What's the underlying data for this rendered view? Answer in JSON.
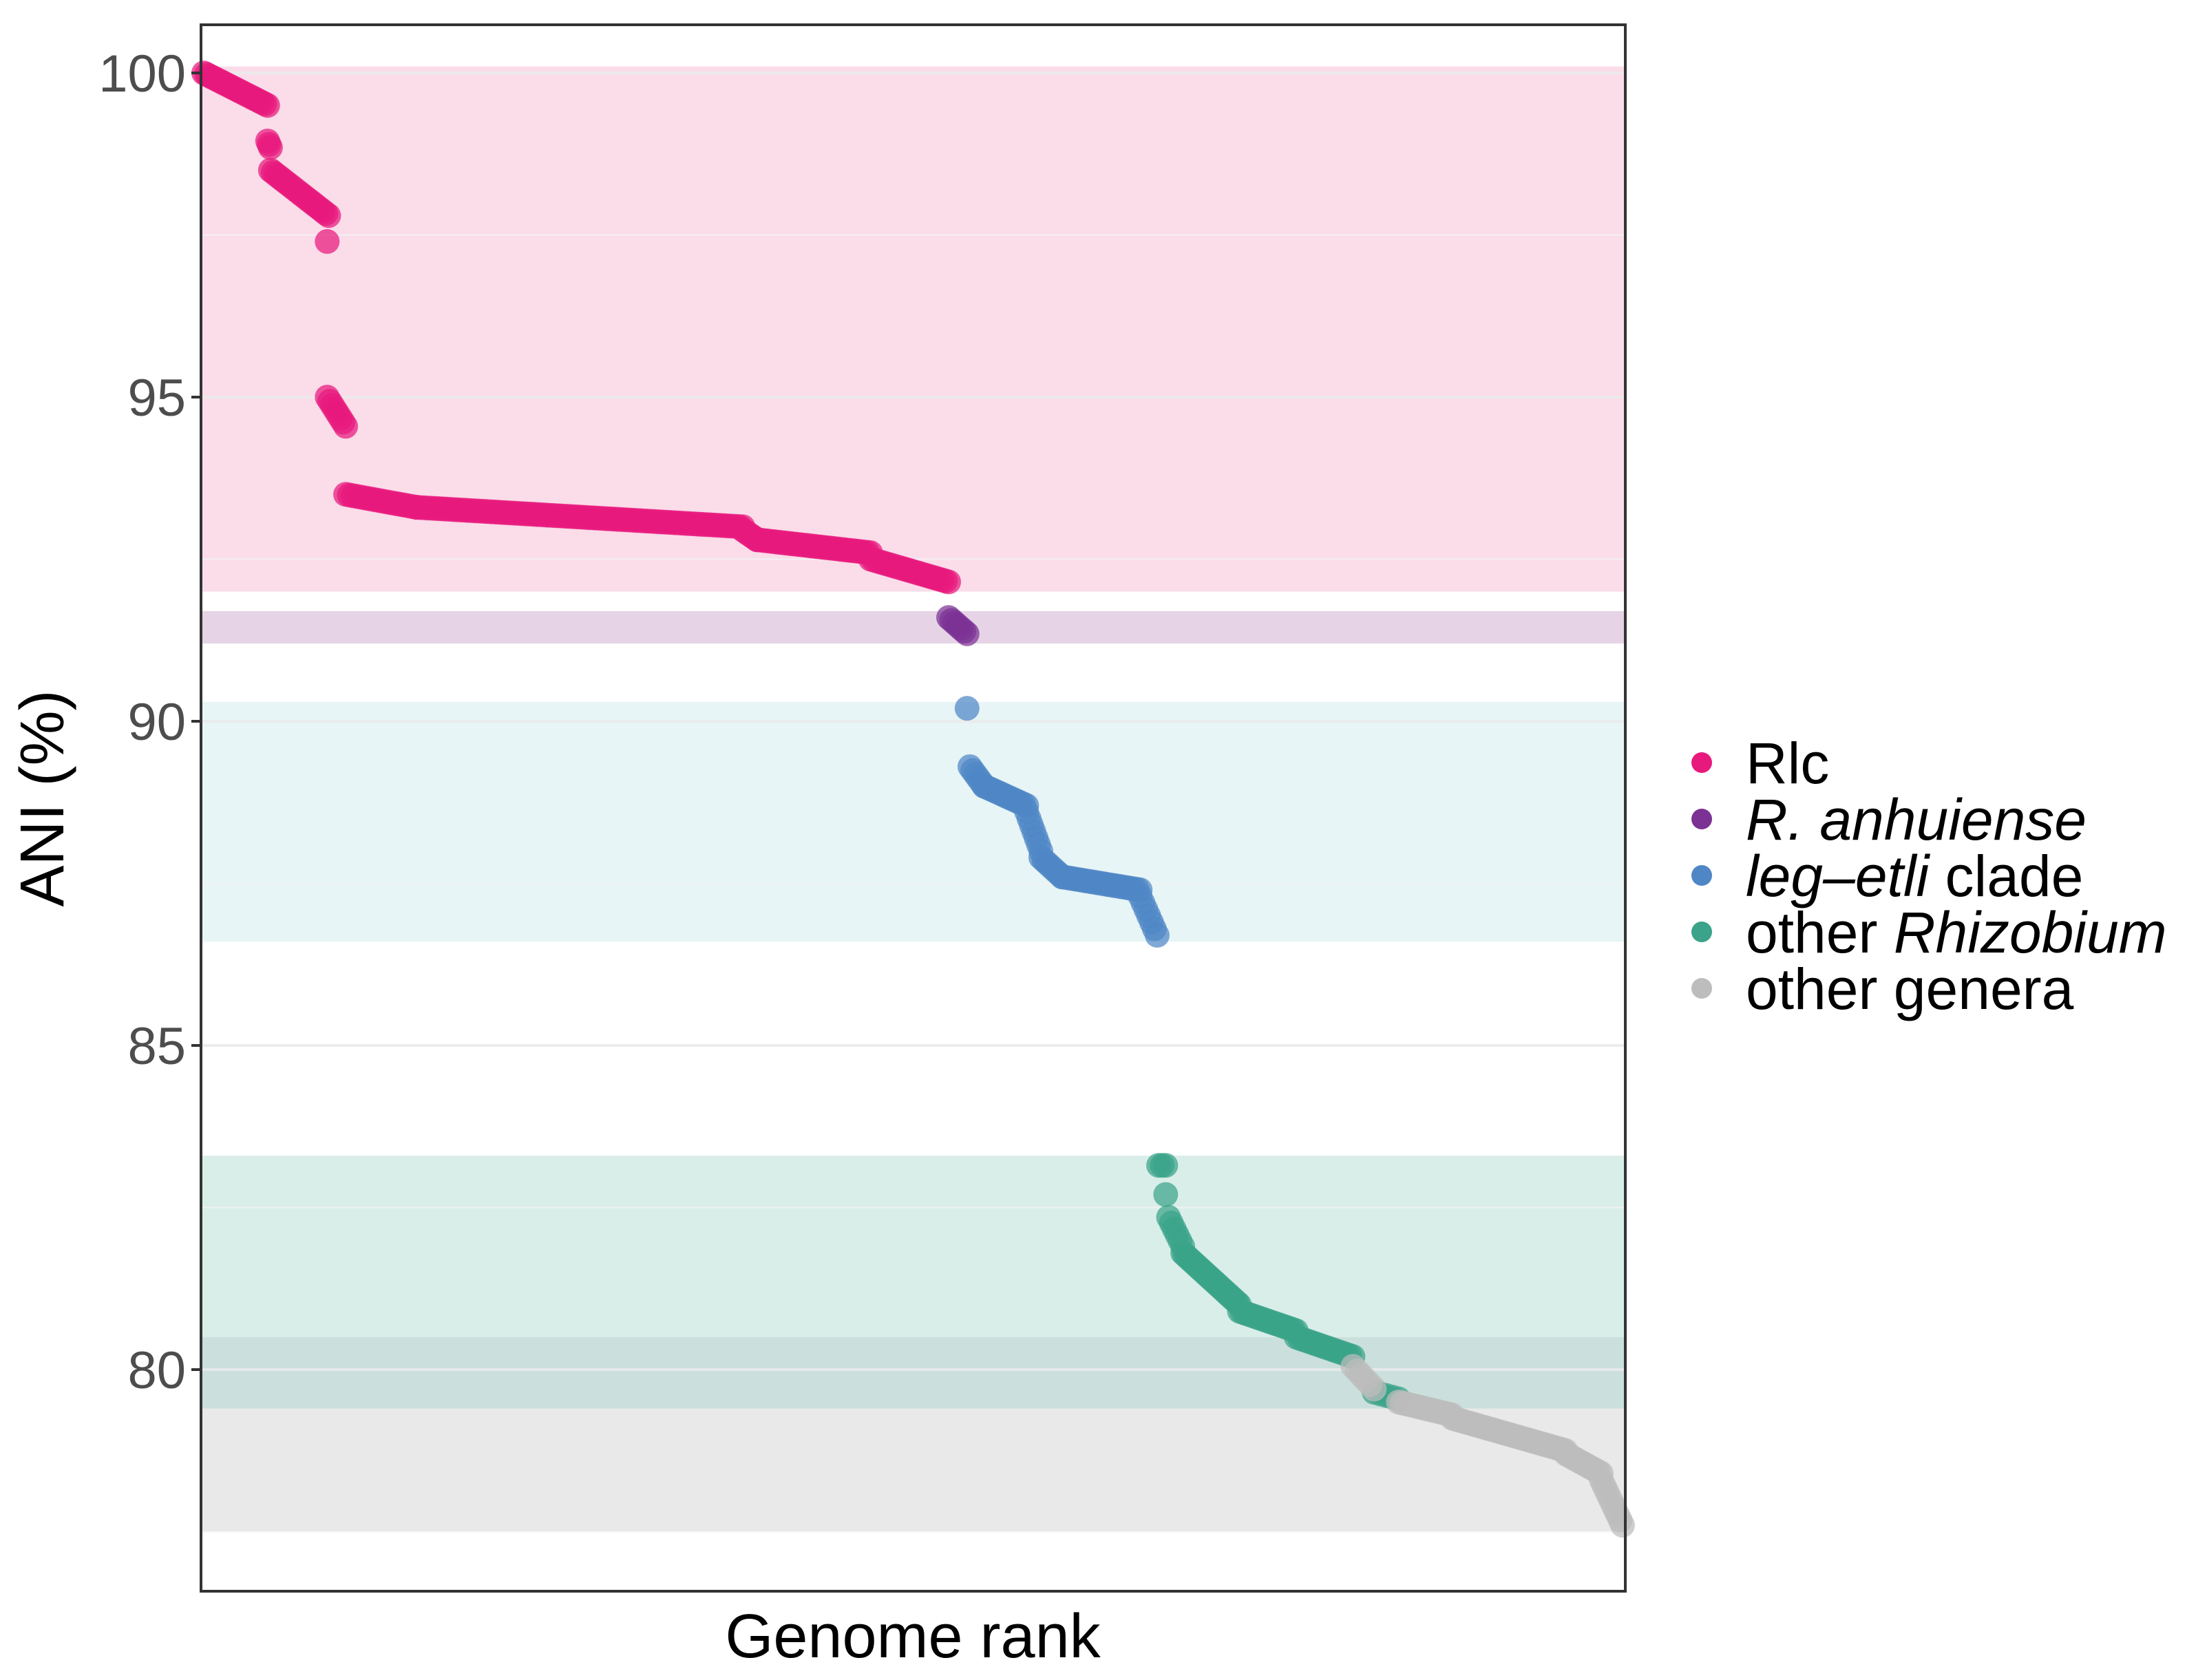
{
  "chart_data": {
    "type": "scatter",
    "title": "",
    "xlabel": "Genome rank",
    "ylabel": "ANI (%)",
    "ylim": [
      76.5,
      100.7
    ],
    "y_ticks": [
      100,
      95,
      90,
      85,
      80
    ],
    "y_tick_labels": [
      "100",
      "95",
      "90",
      "85",
      "80"
    ],
    "x_ticks_shown": false,
    "x_range": [
      0,
      1000
    ],
    "grid": "horizontal-light",
    "legend_position": "right",
    "bands": [
      {
        "group": "Rlc",
        "y0": 92.0,
        "y1": 100.1,
        "color": "#fbdce9"
      },
      {
        "group": "R. anhuiense",
        "y0": 91.2,
        "y1": 91.7,
        "color": "#e6d4e6"
      },
      {
        "group": "leg-etli clade",
        "y0": 86.6,
        "y1": 90.3,
        "color": "#e7f5f6"
      },
      {
        "group": "other Rhizobium",
        "y0": 79.4,
        "y1": 83.3,
        "color": "#d9eee9"
      },
      {
        "group": "other genera",
        "y0": 77.5,
        "y1": 80.5,
        "color": "#e9e9e9"
      },
      {
        "group": "overlap",
        "y0": 79.4,
        "y1": 80.5,
        "color": "#cbe0dc"
      }
    ],
    "series": [
      {
        "name": "Rlc",
        "color": "#e8197d",
        "x": [
          0,
          45,
          46,
          85,
          86,
          90,
          96,
          100,
          102,
          525,
          526,
          530
        ],
        "y": [
          100.0,
          99.5,
          98.9,
          97.8,
          97.4,
          95.0,
          94.6,
          93.5,
          93.4,
          92.15,
          91.55,
          91.55
        ],
        "segments": [
          {
            "x0": 0,
            "x1": 45,
            "y0": 100.0,
            "y1": 99.5,
            "n": 24
          },
          {
            "x0": 45,
            "x1": 47,
            "y0": 98.95,
            "y1": 98.85,
            "n": 3
          },
          {
            "x0": 47,
            "x1": 88,
            "y0": 98.5,
            "y1": 97.8,
            "n": 22
          },
          {
            "x0": 87,
            "x1": 87,
            "y0": 97.4,
            "y1": 97.4,
            "n": 1
          },
          {
            "x0": 87,
            "x1": 100,
            "y0": 95.0,
            "y1": 94.55,
            "n": 8
          },
          {
            "x0": 100,
            "x1": 150,
            "y0": 93.5,
            "y1": 93.3,
            "n": 20
          },
          {
            "x0": 150,
            "x1": 380,
            "y0": 93.3,
            "y1": 93.0,
            "n": 90
          },
          {
            "x0": 380,
            "x1": 390,
            "y0": 92.95,
            "y1": 92.8,
            "n": 6
          },
          {
            "x0": 390,
            "x1": 470,
            "y0": 92.8,
            "y1": 92.6,
            "n": 35
          },
          {
            "x0": 470,
            "x1": 525,
            "y0": 92.5,
            "y1": 92.15,
            "n": 25
          }
        ]
      },
      {
        "name": "R. anhuiense",
        "color": "#7b3294",
        "x": [
          525,
          535
        ],
        "y": [
          91.55,
          91.35
        ],
        "segments": [
          {
            "x0": 525,
            "x1": 538,
            "y0": 91.6,
            "y1": 91.35,
            "n": 7
          }
        ]
      },
      {
        "name": "leg-etli clade",
        "color": "#4f86c6",
        "x": [
          538,
          580,
          590,
          670
        ],
        "y": [
          90.2,
          88.7,
          87.6,
          86.7
        ],
        "segments": [
          {
            "x0": 538,
            "x1": 538,
            "y0": 90.2,
            "y1": 90.2,
            "n": 1
          },
          {
            "x0": 540,
            "x1": 550,
            "y0": 89.3,
            "y1": 89.0,
            "n": 6
          },
          {
            "x0": 550,
            "x1": 580,
            "y0": 89.0,
            "y1": 88.7,
            "n": 15
          },
          {
            "x0": 580,
            "x1": 590,
            "y0": 88.6,
            "y1": 88.0,
            "n": 7
          },
          {
            "x0": 590,
            "x1": 605,
            "y0": 87.9,
            "y1": 87.6,
            "n": 8
          },
          {
            "x0": 605,
            "x1": 660,
            "y0": 87.6,
            "y1": 87.4,
            "n": 25
          },
          {
            "x0": 660,
            "x1": 672,
            "y0": 87.3,
            "y1": 86.7,
            "n": 7
          }
        ]
      },
      {
        "name": "other Rhizobium",
        "color": "#3aa389",
        "x": [
          672,
          680,
          740,
          810,
          840
        ],
        "y": [
          83.15,
          82.0,
          80.7,
          80.2,
          79.55
        ],
        "segments": [
          {
            "x0": 673,
            "x1": 678,
            "y0": 83.15,
            "y1": 83.15,
            "n": 3
          },
          {
            "x0": 678,
            "x1": 678,
            "y0": 82.7,
            "y1": 82.7,
            "n": 1
          },
          {
            "x0": 680,
            "x1": 690,
            "y0": 82.35,
            "y1": 81.9,
            "n": 6
          },
          {
            "x0": 690,
            "x1": 730,
            "y0": 81.8,
            "y1": 81.0,
            "n": 25
          },
          {
            "x0": 730,
            "x1": 770,
            "y0": 80.9,
            "y1": 80.6,
            "n": 20
          },
          {
            "x0": 770,
            "x1": 810,
            "y0": 80.5,
            "y1": 80.2,
            "n": 18
          },
          {
            "x0": 825,
            "x1": 842,
            "y0": 79.65,
            "y1": 79.55,
            "n": 5
          }
        ]
      },
      {
        "name": "other genera",
        "color": "#bdbdbd",
        "x": [
          810,
          1000
        ],
        "y": [
          80.05,
          77.6
        ],
        "segments": [
          {
            "x0": 810,
            "x1": 825,
            "y0": 80.05,
            "y1": 79.7,
            "n": 6
          },
          {
            "x0": 842,
            "x1": 880,
            "y0": 79.5,
            "y1": 79.3,
            "n": 18
          },
          {
            "x0": 880,
            "x1": 960,
            "y0": 79.25,
            "y1": 78.75,
            "n": 40
          },
          {
            "x0": 960,
            "x1": 985,
            "y0": 78.7,
            "y1": 78.4,
            "n": 14
          },
          {
            "x0": 985,
            "x1": 1000,
            "y0": 78.3,
            "y1": 77.6,
            "n": 10
          }
        ]
      }
    ],
    "legend": [
      {
        "label": "Rlc",
        "color": "#e8197d",
        "parts": [
          {
            "text": "Rlc",
            "italic": false
          }
        ]
      },
      {
        "label": "R. anhuiense",
        "color": "#7b3294",
        "parts": [
          {
            "text": "R. anhuiense",
            "italic": true
          }
        ]
      },
      {
        "label": "leg-etli clade",
        "color": "#4f86c6",
        "parts": [
          {
            "text": "leg–etli",
            "italic": true
          },
          {
            "text": " clade",
            "italic": false
          }
        ]
      },
      {
        "label": "other Rhizobium",
        "color": "#3aa389",
        "parts": [
          {
            "text": "other ",
            "italic": false
          },
          {
            "text": "Rhizobium",
            "italic": true
          }
        ]
      },
      {
        "label": "other genera",
        "color": "#bdbdbd",
        "parts": [
          {
            "text": "other genera",
            "italic": false
          }
        ]
      }
    ]
  }
}
